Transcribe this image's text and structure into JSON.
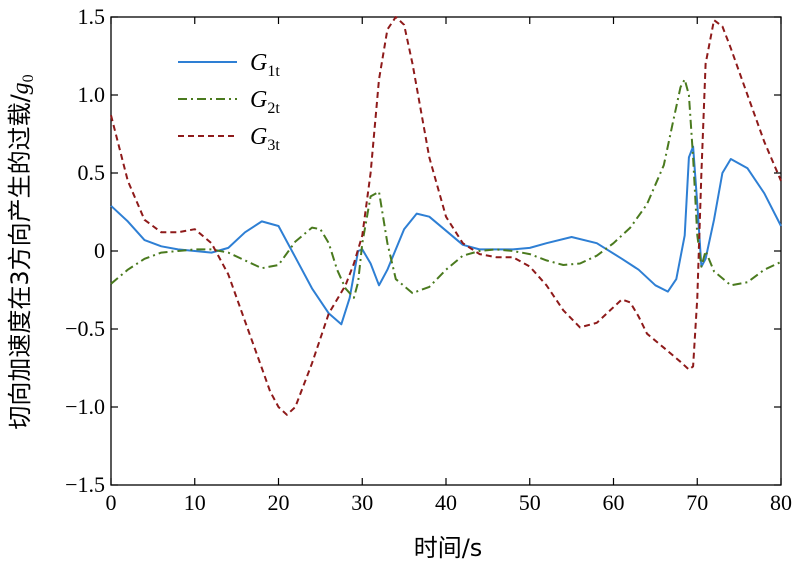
{
  "chart_data": {
    "type": "line",
    "title": "",
    "xlabel": "时间/s",
    "ylabel": "切向加速度在3方向产生的过载/",
    "ylabel_var": "g",
    "ylabel_sub": "0",
    "xlim": [
      0,
      80
    ],
    "ylim": [
      -1.5,
      1.5
    ],
    "xticks": [
      0,
      10,
      20,
      30,
      40,
      50,
      60,
      70,
      80
    ],
    "xtick_labels": [
      "0",
      "10",
      "20",
      "30",
      "40",
      "50",
      "60",
      "70",
      "80"
    ],
    "yticks": [
      -1.5,
      -1.0,
      -0.5,
      0,
      0.5,
      1.0,
      1.5
    ],
    "ytick_labels": [
      "−1.5",
      "−1.0",
      "−0.5",
      "0",
      "0.5",
      "1.0",
      "1.5"
    ],
    "legend_position": "top-left",
    "series": [
      {
        "name": "G1t",
        "label_main": "G",
        "label_sub": "1t",
        "color": "#2e7fd4",
        "style": "solid",
        "x": [
          0,
          2,
          4,
          6,
          8,
          10,
          12,
          14,
          16,
          18,
          20,
          22,
          24,
          26,
          27.5,
          28.5,
          29.5,
          30,
          31,
          32,
          33,
          35,
          36.5,
          38,
          40,
          42,
          44,
          46,
          48,
          50,
          52,
          55,
          58,
          61,
          63,
          65,
          66.5,
          67.5,
          68.5,
          69,
          69.5,
          70,
          70.5,
          71,
          72,
          73,
          74,
          76,
          78,
          80
        ],
        "y": [
          0.29,
          0.19,
          0.07,
          0.03,
          0.01,
          0.0,
          -0.01,
          0.02,
          0.12,
          0.19,
          0.16,
          -0.04,
          -0.24,
          -0.4,
          -0.47,
          -0.3,
          0.0,
          0.01,
          -0.08,
          -0.22,
          -0.12,
          0.14,
          0.24,
          0.22,
          0.13,
          0.04,
          0.01,
          0.01,
          0.01,
          0.02,
          0.05,
          0.09,
          0.05,
          -0.05,
          -0.12,
          -0.22,
          -0.26,
          -0.18,
          0.1,
          0.6,
          0.67,
          0.3,
          -0.1,
          -0.05,
          0.2,
          0.5,
          0.59,
          0.53,
          0.37,
          0.16
        ]
      },
      {
        "name": "G2t",
        "label_main": "G",
        "label_sub": "2t",
        "color": "#4a7a1e",
        "style": "dashdot",
        "x": [
          0,
          2,
          4,
          6,
          8,
          10,
          12,
          14,
          16,
          18,
          20,
          22,
          24,
          25,
          26,
          27,
          28,
          29,
          29.5,
          30,
          31,
          32,
          33,
          34,
          36,
          38,
          40,
          42,
          44,
          46,
          48,
          50,
          52,
          54,
          56,
          58,
          60,
          62,
          64,
          66,
          67,
          68,
          68.5,
          69,
          69.5,
          70,
          70.5,
          71,
          72,
          74,
          76,
          78,
          80
        ],
        "y": [
          -0.21,
          -0.12,
          -0.05,
          -0.01,
          0.0,
          0.01,
          0.01,
          -0.01,
          -0.06,
          -0.11,
          -0.09,
          0.06,
          0.15,
          0.14,
          0.05,
          -0.12,
          -0.24,
          -0.3,
          -0.2,
          0.05,
          0.35,
          0.38,
          0.05,
          -0.18,
          -0.27,
          -0.23,
          -0.12,
          -0.03,
          0.0,
          0.01,
          0.0,
          -0.02,
          -0.06,
          -0.09,
          -0.08,
          -0.03,
          0.05,
          0.15,
          0.3,
          0.55,
          0.8,
          1.05,
          1.1,
          1.0,
          0.6,
          0.1,
          -0.1,
          0.0,
          -0.13,
          -0.22,
          -0.2,
          -0.12,
          -0.07
        ]
      },
      {
        "name": "G3t",
        "label_main": "G",
        "label_sub": "3t",
        "color": "#8e1a1a",
        "style": "dashed",
        "x": [
          0,
          2,
          4,
          6,
          8,
          10,
          12,
          14,
          16,
          18,
          19,
          20,
          21,
          22,
          24,
          26,
          28,
          29,
          30,
          31,
          32,
          33,
          34,
          35,
          36,
          38,
          40,
          42,
          44,
          46,
          48,
          50,
          52,
          54,
          56,
          58,
          60,
          61,
          62,
          63,
          64,
          66,
          68,
          69,
          69.5,
          70,
          70.5,
          71,
          72,
          73,
          74,
          76,
          78,
          80
        ],
        "y": [
          0.87,
          0.45,
          0.2,
          0.12,
          0.12,
          0.14,
          0.05,
          -0.15,
          -0.45,
          -0.75,
          -0.9,
          -1.0,
          -1.05,
          -1.0,
          -0.72,
          -0.4,
          -0.22,
          -0.08,
          0.1,
          0.5,
          1.1,
          1.42,
          1.5,
          1.45,
          1.2,
          0.6,
          0.22,
          0.05,
          -0.02,
          -0.04,
          -0.04,
          -0.1,
          -0.22,
          -0.38,
          -0.49,
          -0.46,
          -0.36,
          -0.31,
          -0.33,
          -0.42,
          -0.53,
          -0.62,
          -0.71,
          -0.76,
          -0.74,
          -0.3,
          0.5,
          1.2,
          1.48,
          1.44,
          1.3,
          1.0,
          0.7,
          0.45
        ]
      }
    ]
  }
}
